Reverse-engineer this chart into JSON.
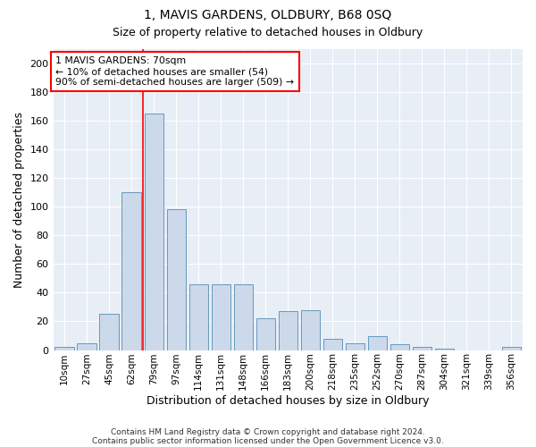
{
  "title": "1, MAVIS GARDENS, OLDBURY, B68 0SQ",
  "subtitle": "Size of property relative to detached houses in Oldbury",
  "xlabel": "Distribution of detached houses by size in Oldbury",
  "ylabel": "Number of detached properties",
  "bar_color": "#ccd9ea",
  "bar_edge_color": "#6699bb",
  "bg_color": "#e8eef5",
  "categories": [
    "10sqm",
    "27sqm",
    "45sqm",
    "62sqm",
    "79sqm",
    "97sqm",
    "114sqm",
    "131sqm",
    "148sqm",
    "166sqm",
    "183sqm",
    "200sqm",
    "218sqm",
    "235sqm",
    "252sqm",
    "270sqm",
    "287sqm",
    "304sqm",
    "321sqm",
    "339sqm",
    "356sqm"
  ],
  "values": [
    2,
    5,
    25,
    110,
    165,
    98,
    46,
    46,
    46,
    22,
    27,
    28,
    8,
    5,
    10,
    4,
    2,
    1,
    0,
    0,
    2
  ],
  "red_line_index": 3.5,
  "annotation_line1": "1 MAVIS GARDENS: 70sqm",
  "annotation_line2": "← 10% of detached houses are smaller (54)",
  "annotation_line3": "90% of semi-detached houses are larger (509) →",
  "ylim": [
    0,
    210
  ],
  "yticks": [
    0,
    20,
    40,
    60,
    80,
    100,
    120,
    140,
    160,
    180,
    200
  ],
  "footer_line1": "Contains HM Land Registry data © Crown copyright and database right 2024.",
  "footer_line2": "Contains public sector information licensed under the Open Government Licence v3.0."
}
